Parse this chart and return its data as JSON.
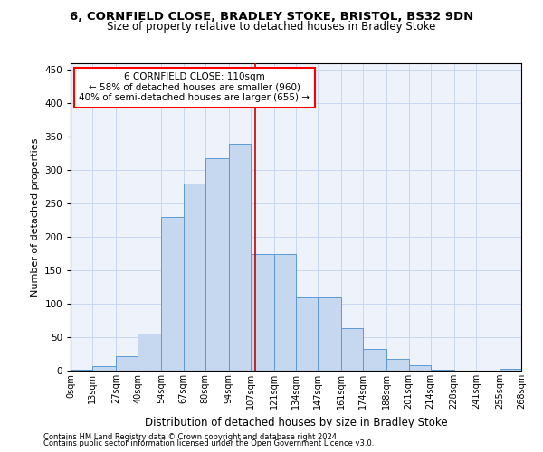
{
  "title1": "6, CORNFIELD CLOSE, BRADLEY STOKE, BRISTOL, BS32 9DN",
  "title2": "Size of property relative to detached houses in Bradley Stoke",
  "xlabel": "Distribution of detached houses by size in Bradley Stoke",
  "ylabel": "Number of detached properties",
  "footnote1": "Contains HM Land Registry data © Crown copyright and database right 2024.",
  "footnote2": "Contains public sector information licensed under the Open Government Licence v3.0.",
  "annotation_line1": "6 CORNFIELD CLOSE: 110sqm",
  "annotation_line2": "← 58% of detached houses are smaller (960)",
  "annotation_line3": "40% of semi-detached houses are larger (655) →",
  "property_size": 110,
  "bar_color": "#c5d8f0",
  "bar_edge_color": "#5b9bd5",
  "vline_color": "#cc0000",
  "grid_color": "#c8d8f0",
  "bg_color": "#eef3fb",
  "bins": [
    0,
    13,
    27,
    40,
    54,
    67,
    80,
    94,
    107,
    121,
    134,
    147,
    161,
    174,
    188,
    201,
    214,
    228,
    241,
    255,
    268
  ],
  "bin_labels": [
    "0sqm",
    "13sqm",
    "27sqm",
    "40sqm",
    "54sqm",
    "67sqm",
    "80sqm",
    "94sqm",
    "107sqm",
    "121sqm",
    "134sqm",
    "147sqm",
    "161sqm",
    "174sqm",
    "188sqm",
    "201sqm",
    "214sqm",
    "228sqm",
    "241sqm",
    "255sqm",
    "268sqm"
  ],
  "heights": [
    2,
    7,
    22,
    55,
    230,
    280,
    318,
    340,
    175,
    175,
    110,
    110,
    63,
    33,
    18,
    8,
    2,
    0,
    0,
    3
  ],
  "ylim": [
    0,
    460
  ],
  "yticks": [
    0,
    50,
    100,
    150,
    200,
    250,
    300,
    350,
    400,
    450
  ]
}
